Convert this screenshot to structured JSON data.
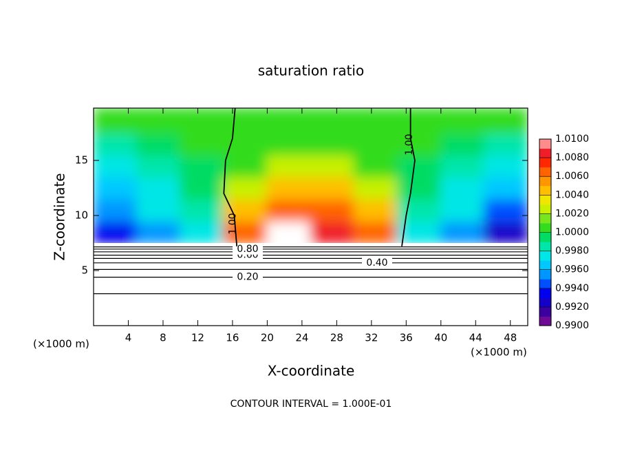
{
  "chart_data": {
    "type": "contour",
    "title": "saturation ratio",
    "x_label": "X-coordinate",
    "y_label": "Z-coordinate",
    "x_unit": "(×1000 m)",
    "footer": "CONTOUR INTERVAL = 1.000E-01",
    "xlim": [
      0,
      50
    ],
    "xticks": [
      4,
      8,
      12,
      16,
      20,
      24,
      28,
      32,
      36,
      40,
      44,
      48
    ],
    "ylim": [
      0,
      19.75
    ],
    "yticks": [
      5,
      10,
      15
    ],
    "x_bins": [
      0,
      5,
      10,
      15,
      20,
      25,
      30,
      35,
      40,
      45,
      50
    ],
    "y_bins": [
      7.5,
      9.5,
      11.5,
      13.5,
      15.5,
      17.5,
      19.75
    ],
    "z": [
      [
        0.993,
        0.995,
        0.997,
        1.007,
        1.01,
        1.009,
        1.007,
        0.997,
        0.995,
        0.992
      ],
      [
        0.995,
        0.997,
        0.998,
        1.004,
        1.006,
        1.006,
        1.004,
        0.998,
        0.997,
        0.994
      ],
      [
        0.9965,
        0.9975,
        0.999,
        1.002,
        1.004,
        1.0045,
        1.002,
        0.999,
        0.9975,
        0.996
      ],
      [
        0.9975,
        0.9985,
        0.9995,
        1.001,
        1.003,
        1.003,
        1.001,
        0.9995,
        0.9985,
        0.9975
      ],
      [
        0.9985,
        0.9995,
        1.0,
        1.0005,
        1.001,
        1.001,
        1.0005,
        1.0,
        0.9995,
        0.9985
      ],
      [
        1.0,
        1.0,
        1.0,
        1.0,
        1.0005,
        1.0005,
        1.0,
        1.0,
        1.0,
        1.0
      ]
    ],
    "clim": [
      0.99,
      1.01
    ],
    "colors": [
      "#6e0a96",
      "#3c00a0",
      "#1400c8",
      "#0000f0",
      "#0050ff",
      "#0096ff",
      "#00c8ff",
      "#00e6e6",
      "#00e6aa",
      "#00dc64",
      "#32dc1e",
      "#78e61e",
      "#c8f000",
      "#f0e600",
      "#ffbe00",
      "#ff9600",
      "#ff6400",
      "#ff2800",
      "#f01e28",
      "#ff8c8c"
    ],
    "cticks": [
      {
        "value": 0.99,
        "label": "0.9900"
      },
      {
        "value": 0.992,
        "label": "0.9920"
      },
      {
        "value": 0.994,
        "label": "0.9940"
      },
      {
        "value": 0.996,
        "label": "0.9960"
      },
      {
        "value": 0.998,
        "label": "0.9980"
      },
      {
        "value": 1.0,
        "label": "1.0000"
      },
      {
        "value": 1.002,
        "label": "1.0020"
      },
      {
        "value": 1.004,
        "label": "1.0040"
      },
      {
        "value": 1.006,
        "label": "1.0060"
      },
      {
        "value": 1.008,
        "label": "1.0080"
      },
      {
        "value": 1.01,
        "label": "1.0100"
      }
    ],
    "ground_levels": {
      "levels": [
        0.1,
        {
          "value": 0.2,
          "label": "0.20"
        },
        0.3,
        {
          "value": 0.4,
          "label": "0.40"
        },
        0.5,
        {
          "value": 0.6,
          "label": "0.60"
        },
        0.7,
        {
          "value": 0.8,
          "label": "0.80"
        },
        0.9
      ],
      "z": [
        2.9,
        4.4,
        5.1,
        5.7,
        6.1,
        6.4,
        6.7,
        6.95,
        7.15
      ]
    },
    "line_1": {
      "label": "1.00",
      "z": [
        7.2,
        10,
        12,
        15,
        17,
        19.75
      ],
      "x_left": [
        16.5,
        16.2,
        15,
        15.2,
        16,
        16.3
      ],
      "x_right": [
        35.5,
        36,
        36.5,
        37,
        36.5,
        36.5
      ]
    }
  }
}
